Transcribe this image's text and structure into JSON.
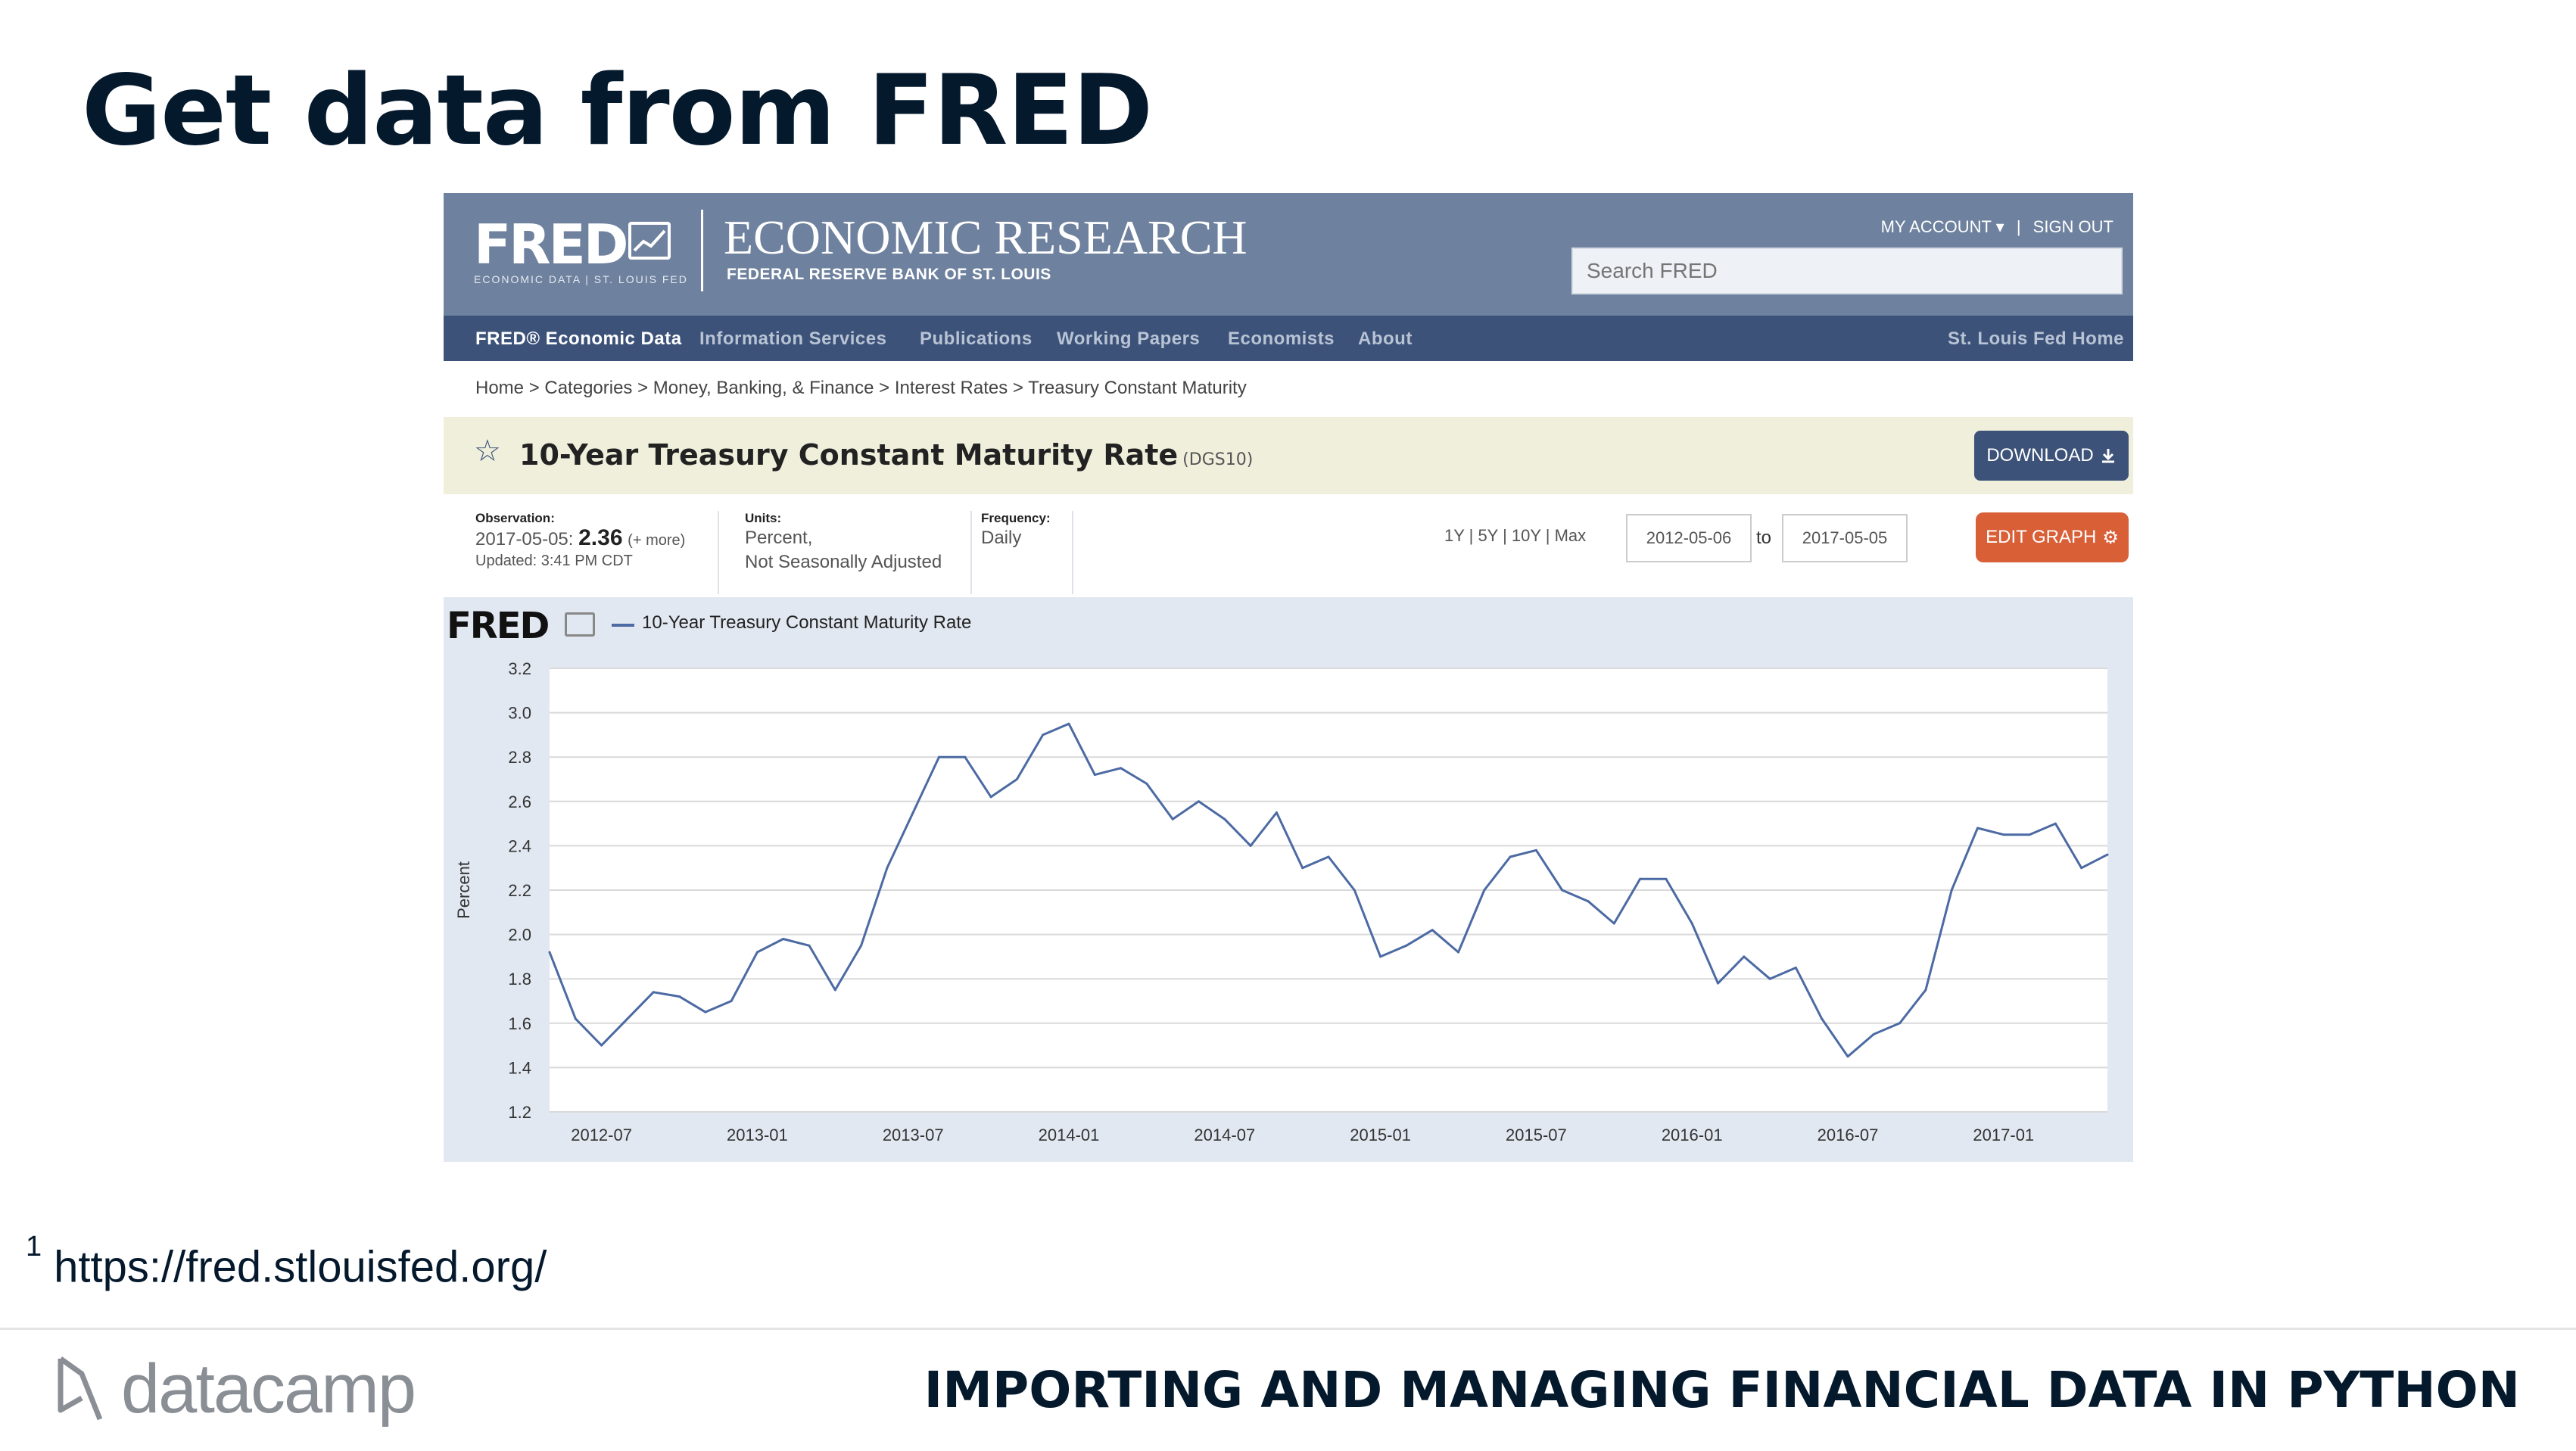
{
  "slide": {
    "title": "Get data from FRED",
    "footnote_marker": "1",
    "footnote_url": "https://fred.stlouisfed.org/",
    "brand": "datacamp",
    "course": "IMPORTING AND MANAGING FINANCIAL DATA IN PYTHON"
  },
  "fred": {
    "logo": "FRED",
    "logo_sub": "ECONOMIC DATA | ST. LOUIS FED",
    "header_title": "ECONOMIC RESEARCH",
    "header_sub": "FEDERAL RESERVE BANK OF ST. LOUIS",
    "my_account": "MY ACCOUNT ▾",
    "sign_out": "SIGN OUT",
    "search_placeholder": "Search FRED",
    "nav": [
      {
        "label": "FRED® Economic Data"
      },
      {
        "label": "Information Services"
      },
      {
        "label": "Publications"
      },
      {
        "label": "Working Papers"
      },
      {
        "label": "Economists"
      },
      {
        "label": "About"
      }
    ],
    "nav_right": "St. Louis Fed Home",
    "breadcrumb": "Home > Categories > Money, Banking, & Finance > Interest Rates > Treasury Constant Maturity",
    "series_title": "10-Year Treasury Constant Maturity Rate",
    "series_id": "(DGS10)",
    "download_label": "DOWNLOAD",
    "observation": {
      "heading": "Observation:",
      "date": "2017-05-05:",
      "value": "2.36",
      "more": "(+ more)",
      "updated": "Updated: 3:41 PM CDT"
    },
    "units": {
      "heading": "Units:",
      "line1": "Percent,",
      "line2": "Not Seasonally Adjusted"
    },
    "frequency": {
      "heading": "Frequency:",
      "value": "Daily"
    },
    "ranges": "1Y | 5Y | 10Y | Max",
    "date_from": "2012-05-06",
    "date_to_label": "to",
    "date_to": "2017-05-05",
    "edit_graph_label": "EDIT GRAPH",
    "colors": {
      "header": "#6e819e",
      "nav": "#3c5279",
      "series_bar": "#efefdc",
      "download": "#3c5279",
      "edit": "#d95f37",
      "line": "#4c6aa3"
    }
  },
  "chart_data": {
    "type": "line",
    "legend": "10-Year Treasury Constant Maturity Rate",
    "ylabel": "Percent",
    "xlabel": "",
    "ylim": [
      1.2,
      3.2
    ],
    "yticks": [
      "3.2",
      "3.0",
      "2.8",
      "2.6",
      "2.4",
      "2.2",
      "2.0",
      "1.8",
      "1.6",
      "1.4",
      "1.2"
    ],
    "xticks": [
      "2012-07",
      "2013-01",
      "2013-07",
      "2014-01",
      "2014-07",
      "2015-01",
      "2015-07",
      "2016-01",
      "2016-07",
      "2017-01"
    ],
    "grid": true,
    "series": [
      {
        "name": "10-Year Treasury Constant Maturity Rate",
        "x": [
          "2012-05",
          "2012-06",
          "2012-07",
          "2012-08",
          "2012-09",
          "2012-10",
          "2012-11",
          "2012-12",
          "2013-01",
          "2013-02",
          "2013-03",
          "2013-04",
          "2013-05",
          "2013-06",
          "2013-07",
          "2013-08",
          "2013-09",
          "2013-10",
          "2013-11",
          "2013-12",
          "2014-01",
          "2014-02",
          "2014-03",
          "2014-04",
          "2014-05",
          "2014-06",
          "2014-07",
          "2014-08",
          "2014-09",
          "2014-10",
          "2014-11",
          "2014-12",
          "2015-01",
          "2015-02",
          "2015-03",
          "2015-04",
          "2015-05",
          "2015-06",
          "2015-07",
          "2015-08",
          "2015-09",
          "2015-10",
          "2015-11",
          "2015-12",
          "2016-01",
          "2016-02",
          "2016-03",
          "2016-04",
          "2016-05",
          "2016-06",
          "2016-07",
          "2016-08",
          "2016-09",
          "2016-10",
          "2016-11",
          "2016-12",
          "2017-01",
          "2017-02",
          "2017-03",
          "2017-04",
          "2017-05"
        ],
        "values": [
          1.92,
          1.62,
          1.5,
          1.62,
          1.74,
          1.72,
          1.65,
          1.7,
          1.92,
          1.98,
          1.95,
          1.75,
          1.95,
          2.3,
          2.55,
          2.8,
          2.8,
          2.62,
          2.7,
          2.9,
          2.95,
          2.72,
          2.75,
          2.68,
          2.52,
          2.6,
          2.52,
          2.4,
          2.55,
          2.3,
          2.35,
          2.2,
          1.9,
          1.95,
          2.02,
          1.92,
          2.2,
          2.35,
          2.38,
          2.2,
          2.15,
          2.05,
          2.25,
          2.25,
          2.05,
          1.78,
          1.9,
          1.8,
          1.85,
          1.62,
          1.45,
          1.55,
          1.6,
          1.75,
          2.2,
          2.48,
          2.45,
          2.45,
          2.5,
          2.3,
          2.36
        ]
      }
    ]
  }
}
